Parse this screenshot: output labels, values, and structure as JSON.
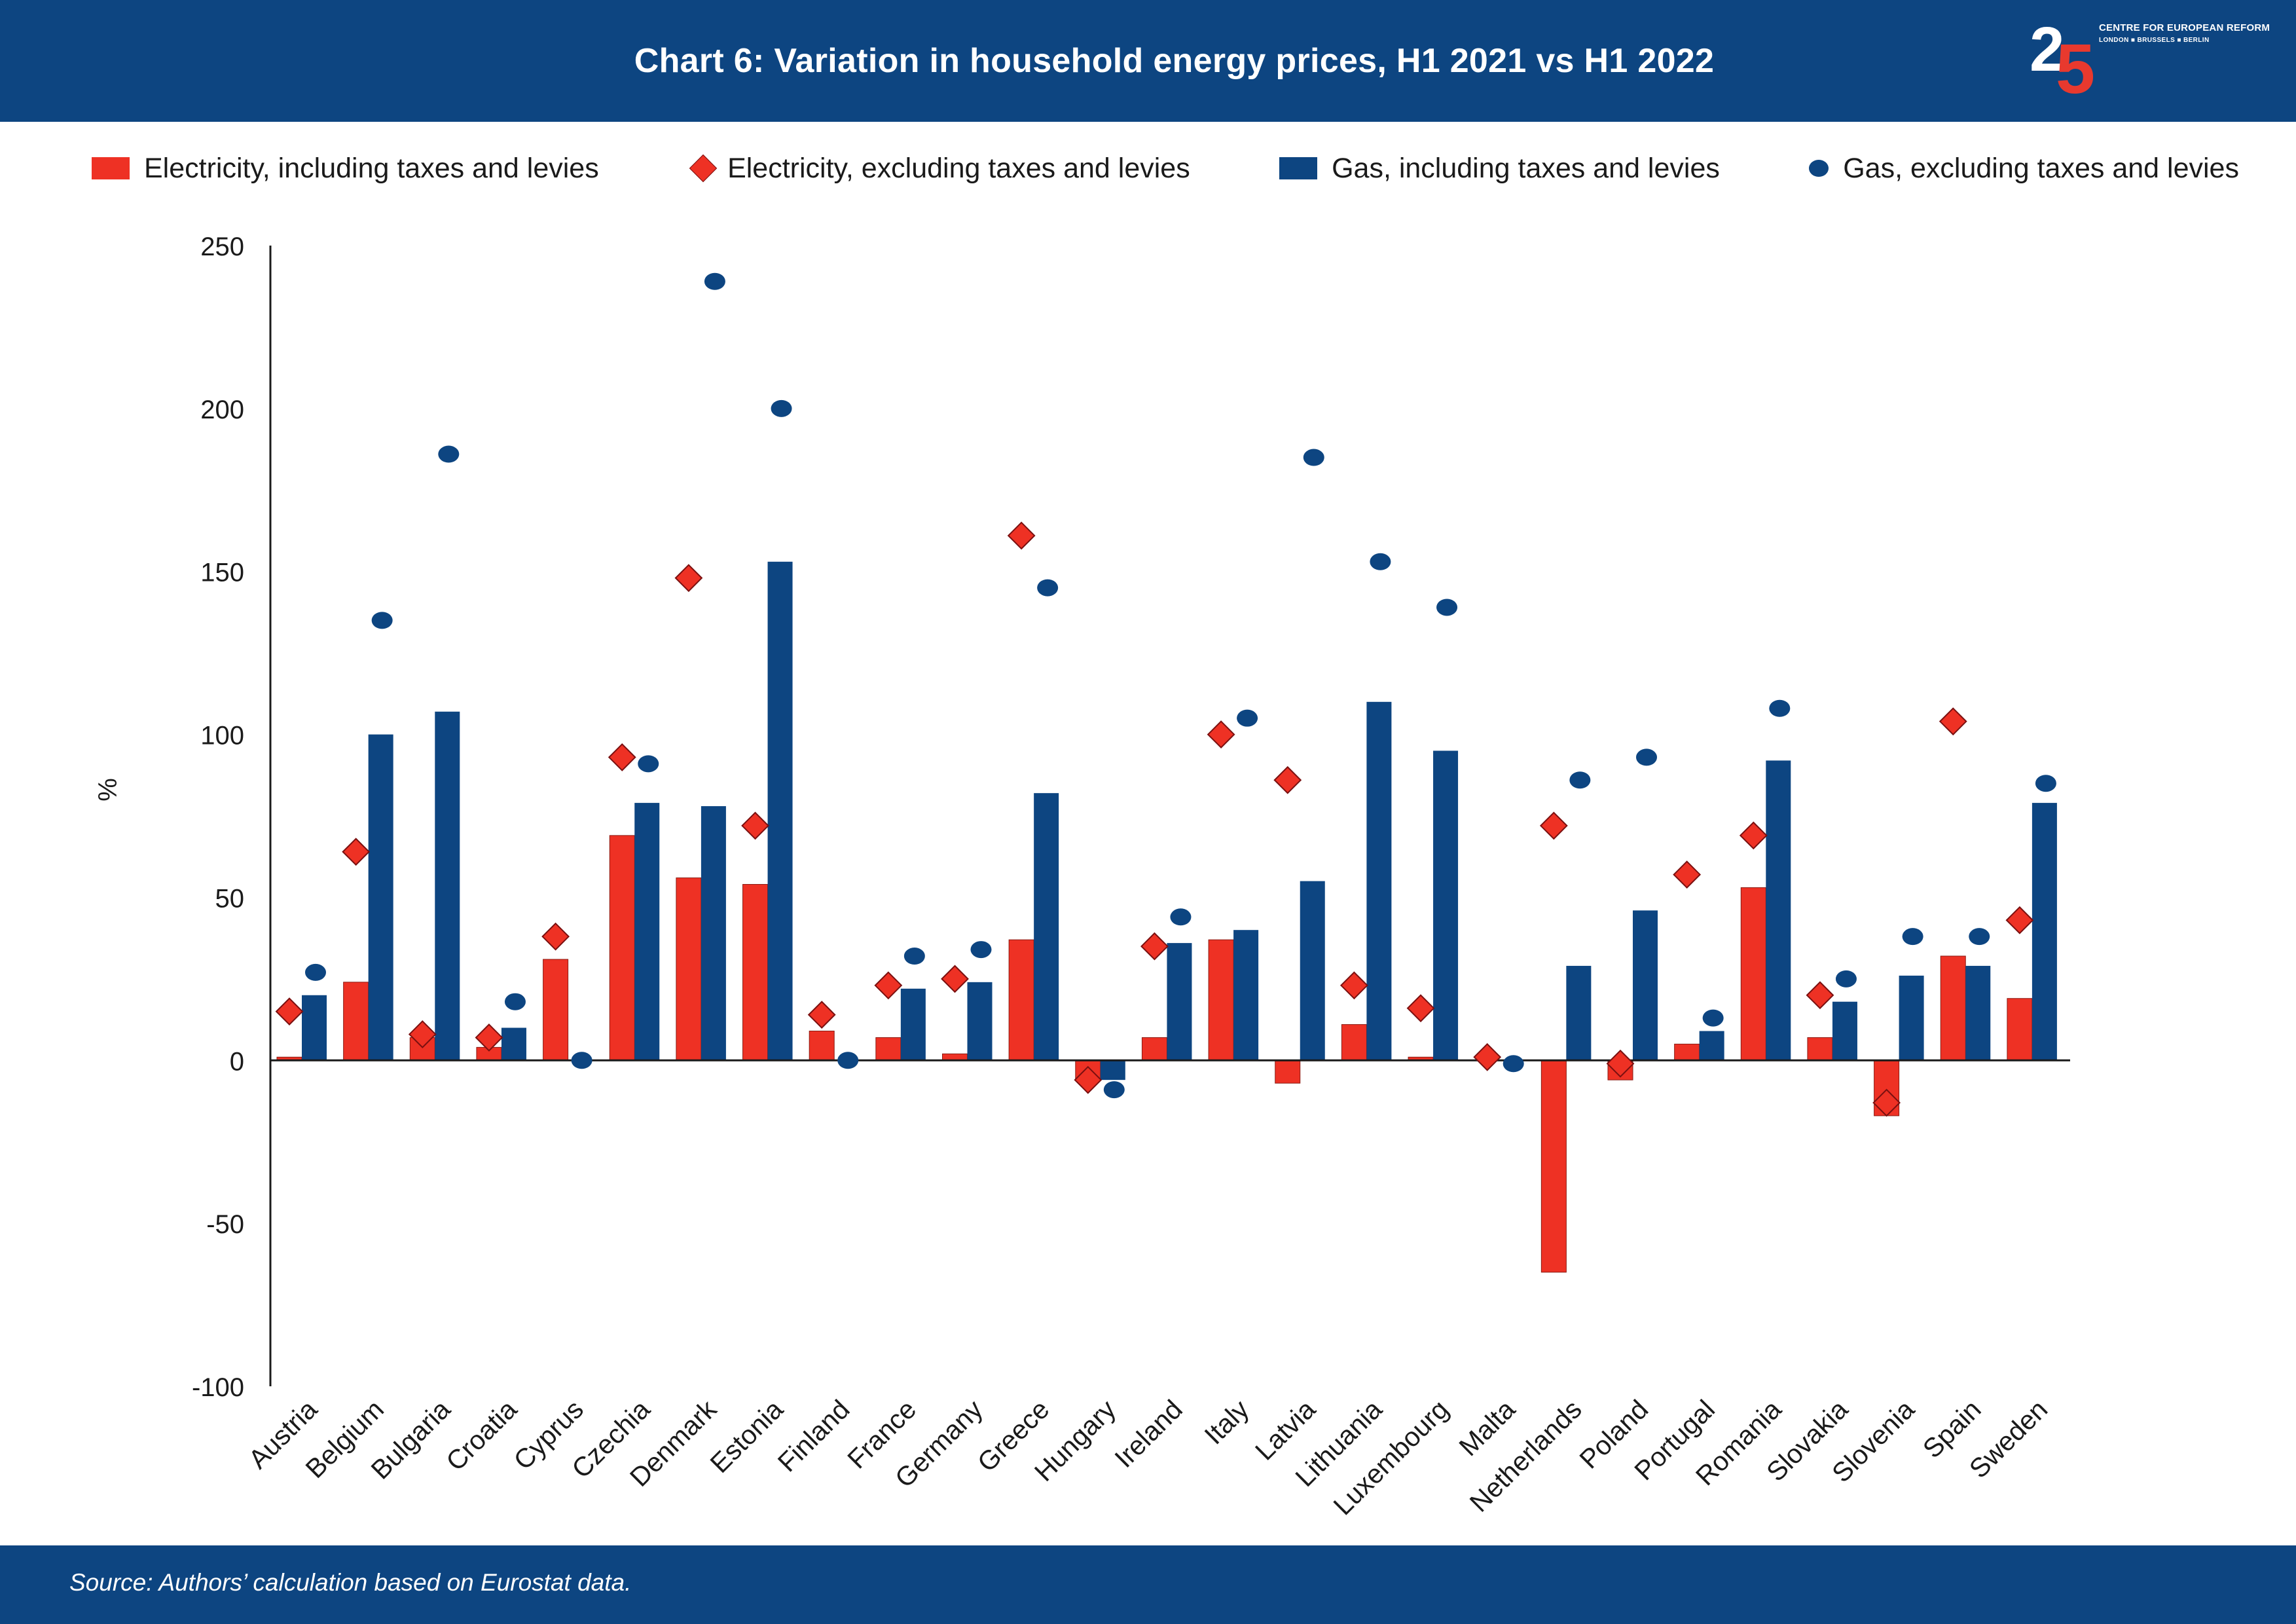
{
  "header": {
    "title": "Chart 6: Variation in household energy prices, H1 2021 vs H1 2022",
    "logo_digits": "25",
    "logo_org": "CENTRE FOR EUROPEAN REFORM",
    "logo_cities": "LONDON ■ BRUSSELS ■ BERLIN"
  },
  "footer": {
    "source": "Source: Authors’ calculation based on Eurostat data."
  },
  "colors": {
    "header_bg": "#0d4581",
    "electricity": "#ee3124",
    "gas": "#0d4581",
    "logo_accent": "#e8392e"
  },
  "chart_data": {
    "type": "bar",
    "title": "Chart 6: Variation in household energy prices, H1 2021 vs H1 2022",
    "ylabel": "%",
    "xlabel": "",
    "ylim": [
      -100,
      250
    ],
    "yticks": [
      250,
      200,
      150,
      100,
      50,
      0,
      -50,
      -100
    ],
    "grid": false,
    "legend_position": "top",
    "categories": [
      "Austria",
      "Belgium",
      "Bulgaria",
      "Croatia",
      "Cyprus",
      "Czechia",
      "Denmark",
      "Estonia",
      "Finland",
      "France",
      "Germany",
      "Greece",
      "Hungary",
      "Ireland",
      "Italy",
      "Latvia",
      "Lithuania",
      "Luxembourg",
      "Malta",
      "Netherlands",
      "Poland",
      "Portugal",
      "Romania",
      "Slovakia",
      "Slovenia",
      "Spain",
      "Sweden"
    ],
    "series": [
      {
        "name": "Electricity, including taxes and levies",
        "kind": "bar",
        "color": "#ee3124",
        "values": [
          1,
          24,
          7,
          4,
          31,
          69,
          56,
          54,
          9,
          7,
          2,
          37,
          -6,
          7,
          37,
          -7,
          11,
          1,
          0,
          -65,
          -6,
          5,
          53,
          7,
          -17,
          32,
          19
        ]
      },
      {
        "name": "Electricity, excluding taxes and levies",
        "kind": "diamond",
        "color": "#ee3124",
        "values": [
          15,
          64,
          8,
          7,
          38,
          93,
          148,
          72,
          14,
          23,
          25,
          161,
          -6,
          35,
          100,
          86,
          23,
          16,
          1,
          72,
          -1,
          57,
          69,
          20,
          -13,
          104,
          43
        ]
      },
      {
        "name": "Gas, including taxes and levies",
        "kind": "bar",
        "color": "#0d4581",
        "values": [
          20,
          100,
          107,
          10,
          0,
          79,
          78,
          153,
          0,
          22,
          24,
          82,
          -6,
          36,
          40,
          55,
          110,
          95,
          0,
          29,
          46,
          9,
          92,
          18,
          26,
          29,
          79
        ]
      },
      {
        "name": "Gas, excluding taxes and levies",
        "kind": "circle",
        "color": "#0d4581",
        "values": [
          27,
          135,
          186,
          18,
          0,
          91,
          239,
          200,
          0,
          32,
          34,
          145,
          -9,
          44,
          105,
          185,
          153,
          139,
          -1,
          86,
          93,
          13,
          108,
          25,
          38,
          38,
          85
        ]
      }
    ]
  }
}
